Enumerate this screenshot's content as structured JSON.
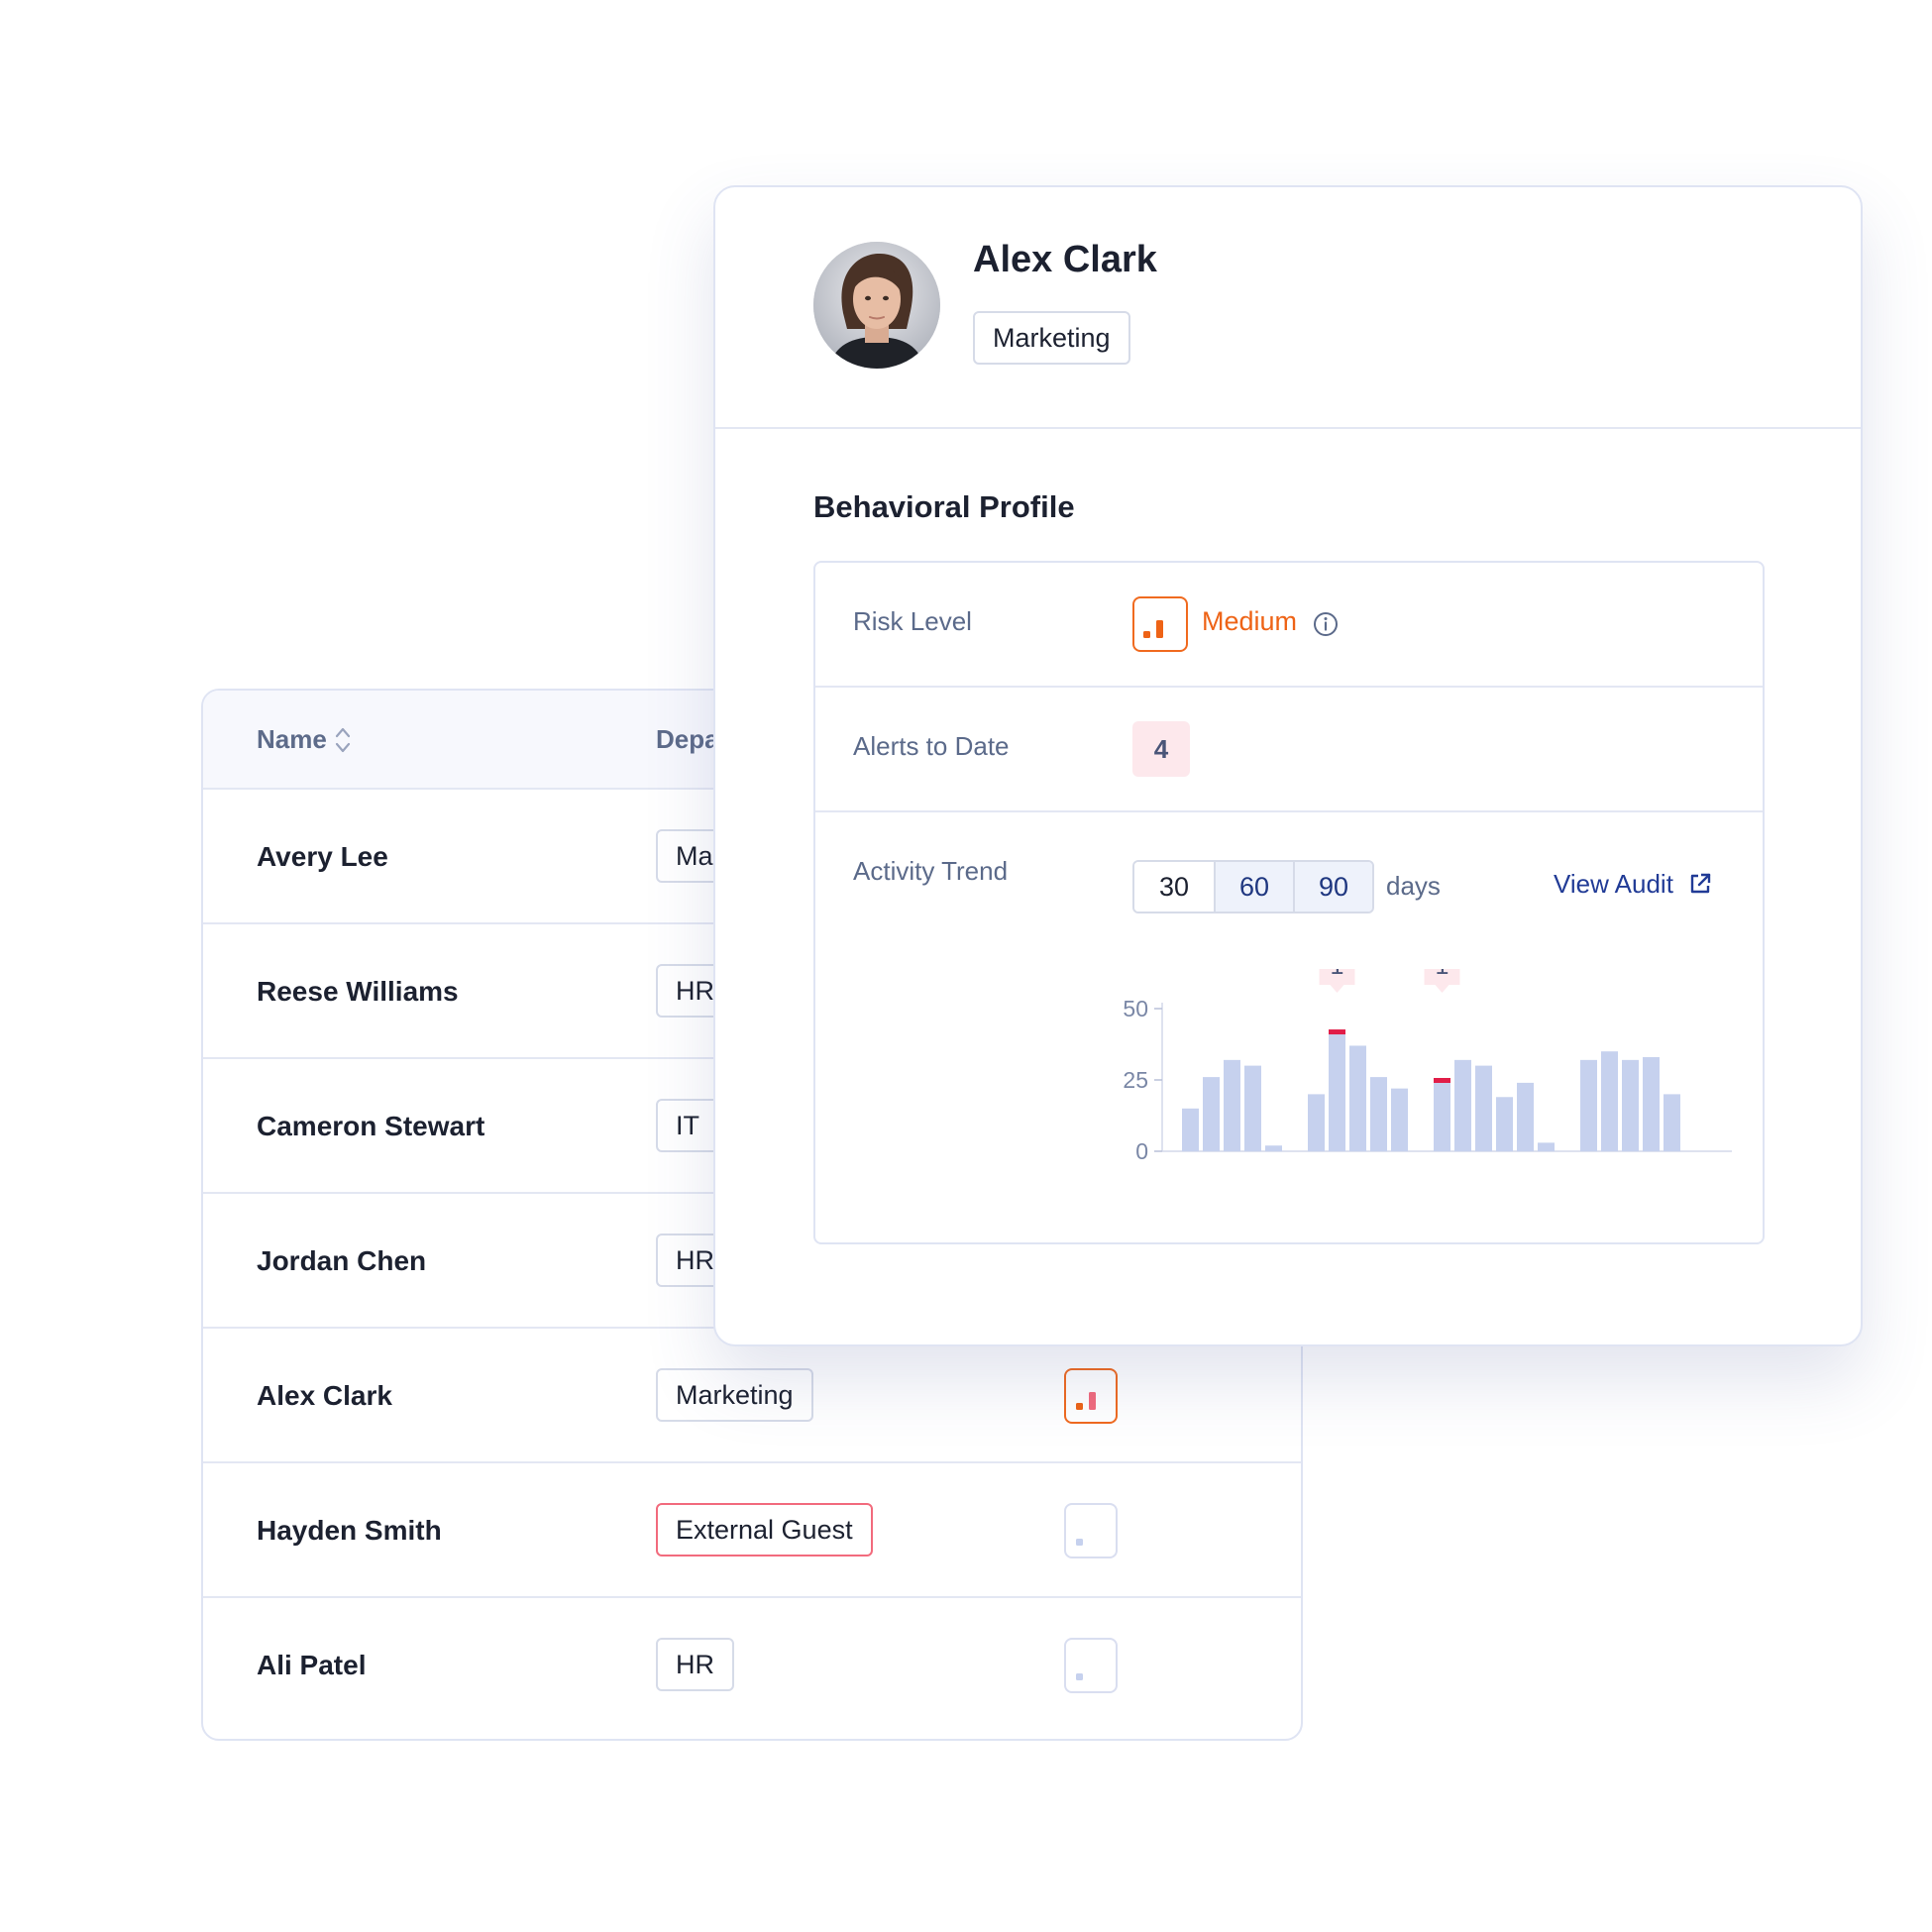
{
  "people_table": {
    "columns": {
      "name": "Name",
      "department": "Depa"
    },
    "rows": [
      {
        "name": "Avery Lee",
        "department": "Ma",
        "risk": ""
      },
      {
        "name": "Reese Williams",
        "department": "HR",
        "risk": ""
      },
      {
        "name": "Cameron Stewart",
        "department": "IT",
        "risk": ""
      },
      {
        "name": "Jordan Chen",
        "department": "HR",
        "risk": ""
      },
      {
        "name": "Alex Clark",
        "department": "Marketing",
        "risk": "medium"
      },
      {
        "name": "Hayden Smith",
        "department": "External Guest",
        "risk": "low"
      },
      {
        "name": "Ali Patel",
        "department": "HR",
        "risk": "low"
      }
    ]
  },
  "profile": {
    "name": "Alex Clark",
    "department": "Marketing",
    "section_title": "Behavioral Profile",
    "risk_label": "Risk Level",
    "risk_value": "Medium",
    "alerts_label": "Alerts to Date",
    "alerts_value": "4",
    "trend_label": "Activity Trend",
    "range_options": [
      "30",
      "60",
      "90"
    ],
    "range_unit": "days",
    "view_audit_label": "View Audit"
  },
  "colors": {
    "accent_blue": "#213b96",
    "risk_medium": "#ee6316",
    "alert_red": "#e11d48",
    "bar": "#c6d1ee"
  },
  "icons": {
    "sort": "sort-icon",
    "info": "info-icon",
    "external_link": "external-link-icon",
    "risk_medium": "signal-bars-icon",
    "risk_low": "signal-dot-icon"
  },
  "chart_data": {
    "type": "bar",
    "ytick_labels": [
      "0",
      "25",
      "50"
    ],
    "ylim": [
      0,
      50
    ],
    "groups": [
      [
        15,
        26,
        32,
        30,
        2
      ],
      [
        20,
        42,
        37,
        26,
        22
      ],
      [
        25,
        32,
        30,
        19,
        24,
        3
      ],
      [
        32,
        35,
        32,
        33,
        20
      ]
    ],
    "alert_marks": [
      {
        "group": 1,
        "index": 1,
        "label": "1"
      },
      {
        "group": 2,
        "index": 0,
        "label": "1"
      }
    ]
  }
}
